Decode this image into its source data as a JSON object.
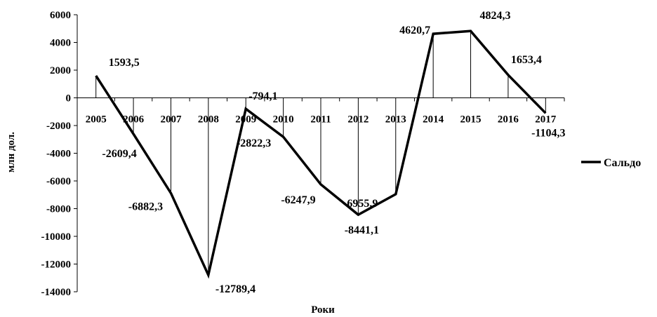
{
  "chart_data": {
    "type": "line",
    "title": "",
    "xlabel": "Роки",
    "ylabel": "млн дол.",
    "categories": [
      "2005",
      "2006",
      "2007",
      "2008",
      "2009",
      "2010",
      "2011",
      "2012",
      "2013",
      "2014",
      "2015",
      "2016",
      "2017"
    ],
    "series": [
      {
        "name": "Сальдо",
        "values": [
          1593.5,
          -2609.4,
          -6882.3,
          -12789.4,
          -794.1,
          -2822.3,
          -6247.9,
          -8441.1,
          -6955.9,
          4620.7,
          4824.3,
          1653.4,
          -1104.3
        ],
        "labels": [
          "1593,5",
          "-2609,4",
          "-6882,3",
          "-12789,4",
          "-794,1",
          "-2822,3",
          "-6247,9",
          "-8441,1",
          "-6955,9",
          "4620,7",
          "4824,3",
          "1653,4",
          "-1104,3"
        ],
        "color": "#000000",
        "drop_lines": true
      }
    ],
    "ylim": [
      -14000,
      6000
    ],
    "yticks": [
      6000,
      4000,
      2000,
      0,
      -2000,
      -4000,
      -6000,
      -8000,
      -10000,
      -12000,
      -14000
    ],
    "grid": false,
    "legend": "right"
  }
}
